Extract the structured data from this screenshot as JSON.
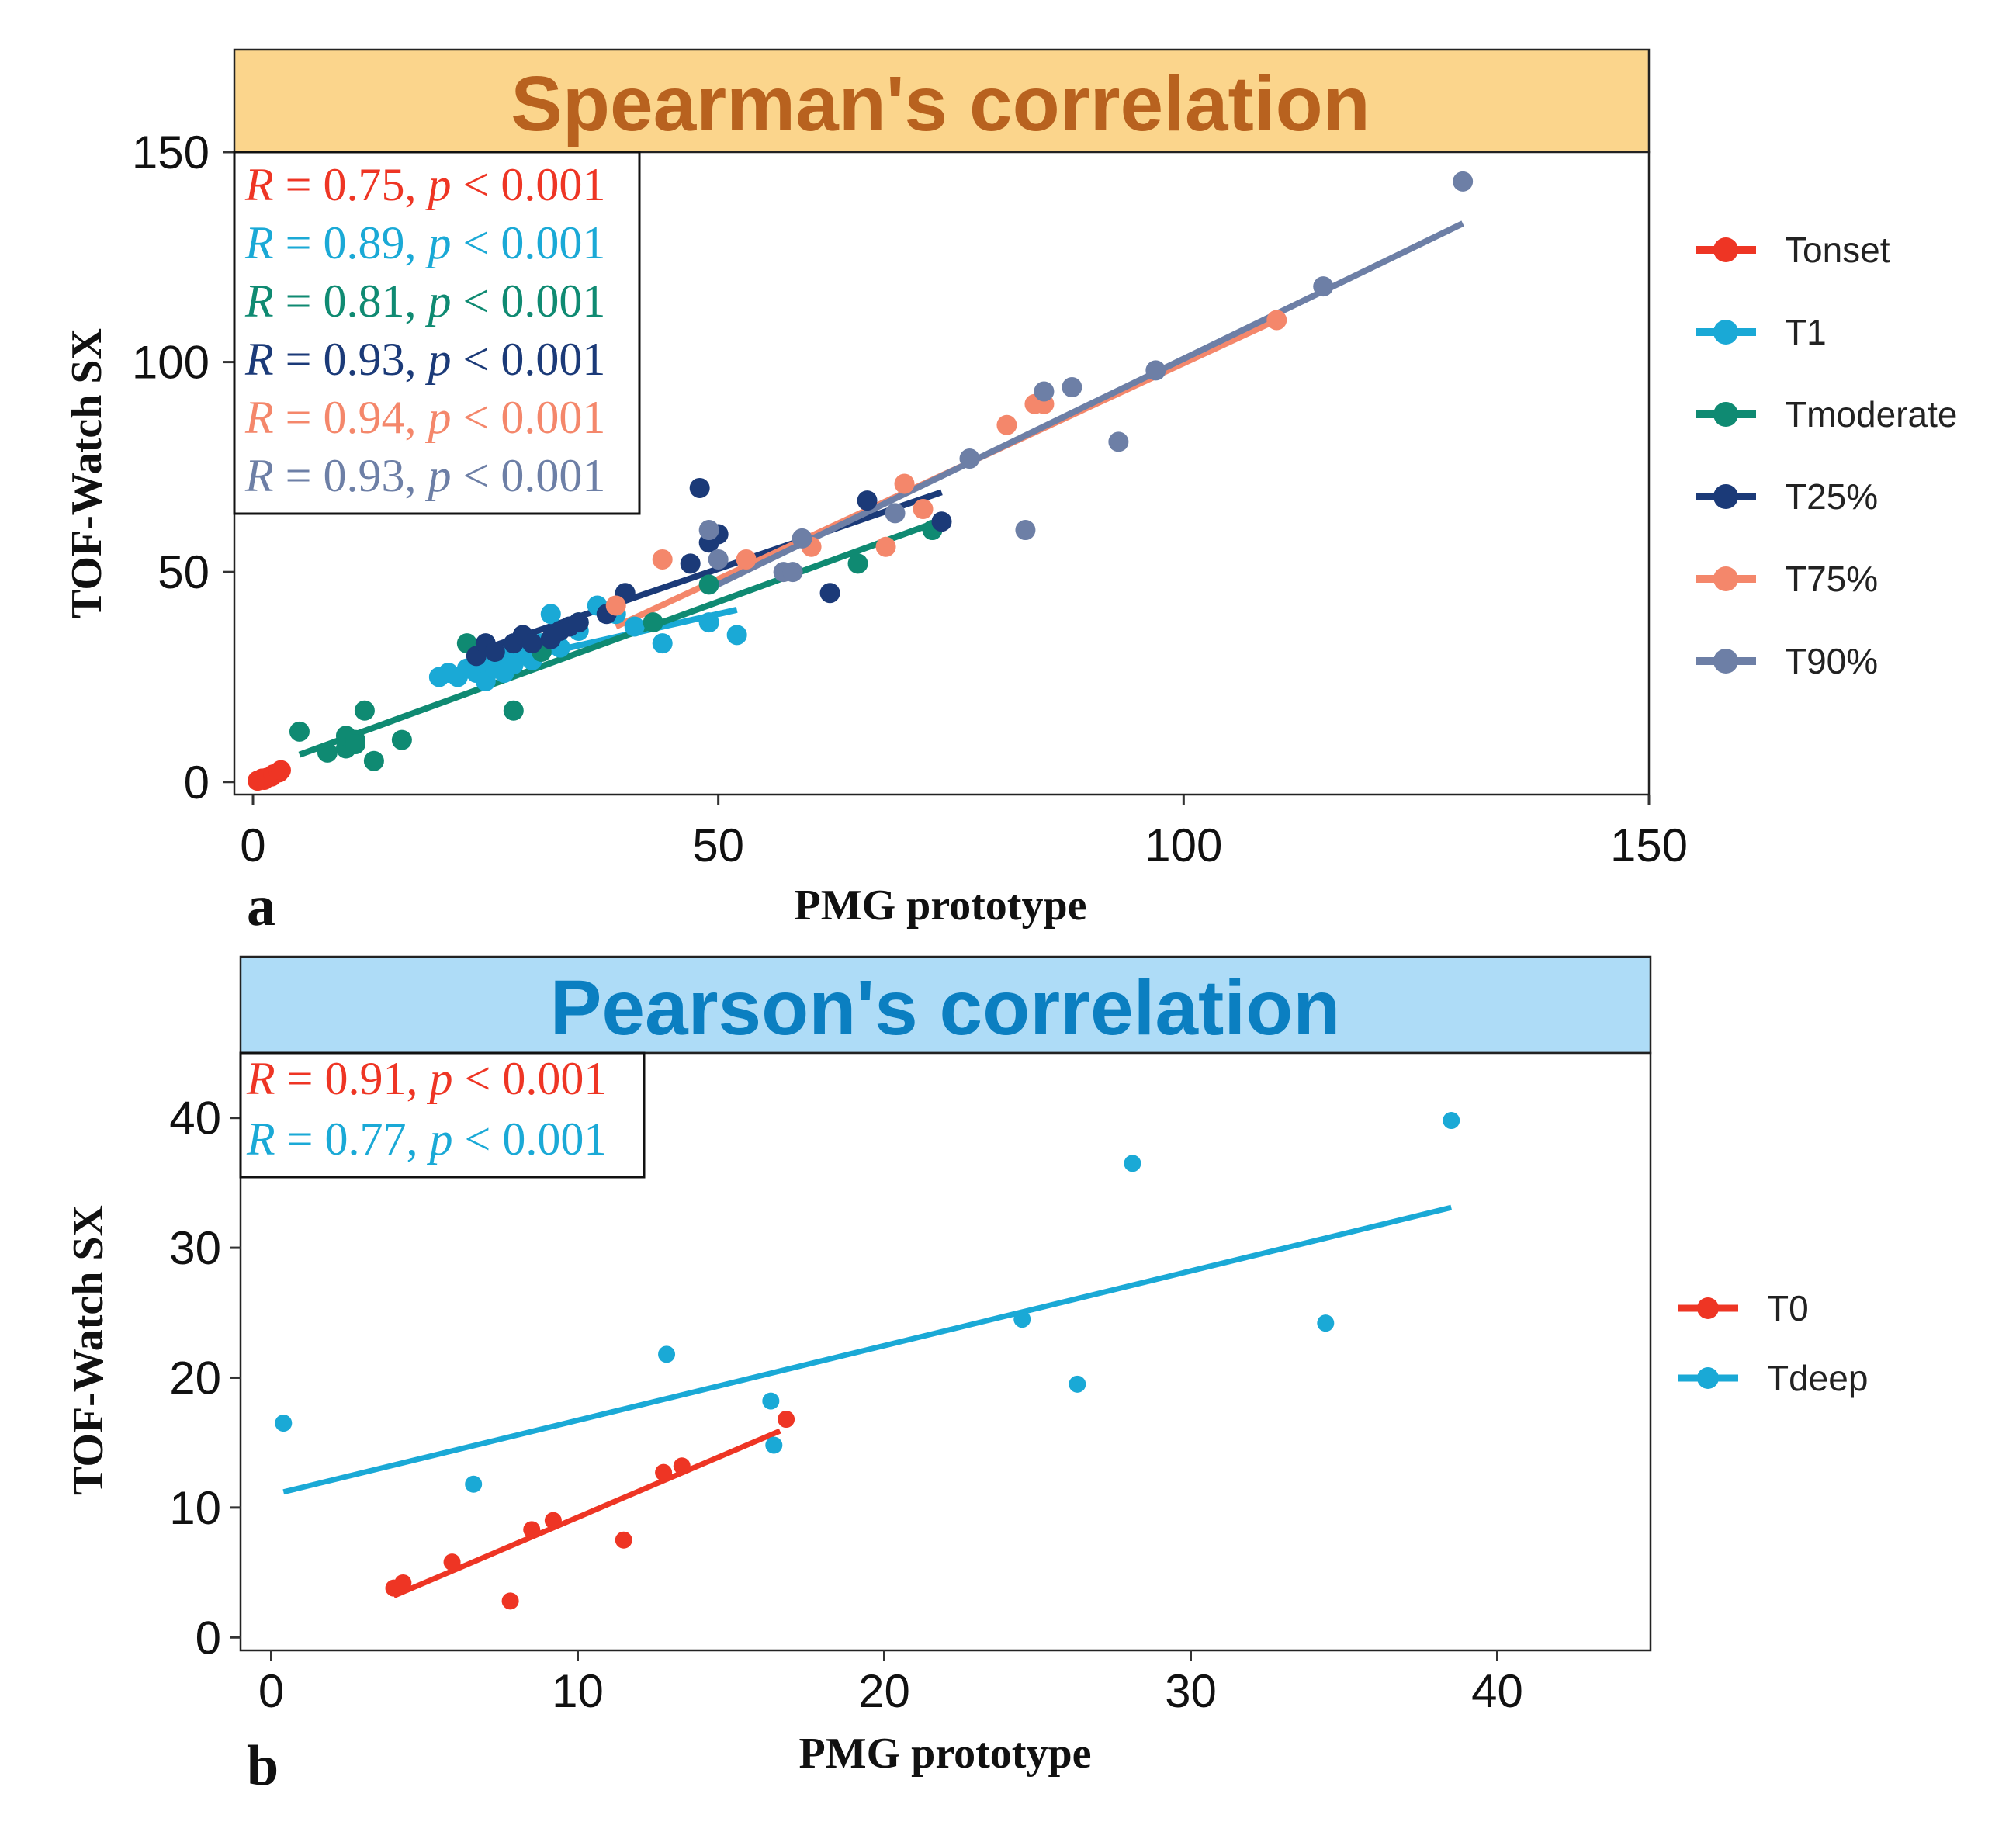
{
  "chart_data": [
    {
      "id": "a",
      "type": "scatter",
      "panel_label": "a",
      "title": "Spearman's correlation",
      "title_color": "#b8621f",
      "strip_color": "#fbd58c",
      "xlabel": "PMG prototype",
      "ylabel": "TOF-Watch SX",
      "xlim": [
        -2,
        150
      ],
      "ylim": [
        -3,
        150
      ],
      "xticks": [
        0,
        50,
        100,
        150
      ],
      "yticks": [
        0,
        50,
        100,
        150
      ],
      "grid": false,
      "legend_position": "right",
      "stats": [
        {
          "series": "Tonset",
          "text": "R = 0.75, p < 0.001"
        },
        {
          "series": "T1",
          "text": "R = 0.89, p < 0.001"
        },
        {
          "series": "Tmoderate",
          "text": "R = 0.81, p < 0.001"
        },
        {
          "series": "T25%",
          "text": "R = 0.93, p < 0.001"
        },
        {
          "series": "T75%",
          "text": "R = 0.94, p < 0.001"
        },
        {
          "series": "T90%",
          "text": "R = 0.93, p < 0.001"
        }
      ],
      "series": [
        {
          "name": "Tonset",
          "color": "#ee3524",
          "points": [
            [
              0.5,
              0.3
            ],
            [
              1.0,
              0.8
            ],
            [
              1.2,
              0.5
            ],
            [
              1.5,
              1.0
            ],
            [
              2.0,
              1.3
            ],
            [
              2.2,
              1.8
            ],
            [
              2.8,
              2.3
            ],
            [
              3.0,
              2.8
            ]
          ],
          "fit": [
            [
              0,
              0.2
            ],
            [
              3.2,
              2.4
            ]
          ]
        },
        {
          "name": "T1",
          "color": "#1aa9d6",
          "points": [
            [
              20,
              25
            ],
            [
              21,
              26
            ],
            [
              22,
              25
            ],
            [
              23,
              27
            ],
            [
              24,
              26
            ],
            [
              25,
              28
            ],
            [
              25,
              24
            ],
            [
              26,
              29
            ],
            [
              26,
              27
            ],
            [
              27,
              30
            ],
            [
              27,
              26
            ],
            [
              28,
              28
            ],
            [
              29,
              31
            ],
            [
              30,
              29
            ],
            [
              31,
              33
            ],
            [
              32,
              40
            ],
            [
              33,
              32
            ],
            [
              35,
              36
            ],
            [
              37,
              42
            ],
            [
              39,
              40
            ],
            [
              41,
              37
            ],
            [
              44,
              33
            ],
            [
              49,
              38
            ],
            [
              52,
              35
            ]
          ],
          "fit": [
            [
              20,
              25
            ],
            [
              52,
              41
            ]
          ]
        },
        {
          "name": "Tmoderate",
          "color": "#0f8a72",
          "points": [
            [
              5,
              12
            ],
            [
              8,
              7
            ],
            [
              10,
              8
            ],
            [
              10,
              11
            ],
            [
              11,
              10
            ],
            [
              11,
              9
            ],
            [
              12,
              17
            ],
            [
              13,
              5
            ],
            [
              16,
              10
            ],
            [
              23,
              33
            ],
            [
              28,
              17
            ],
            [
              31,
              31
            ],
            [
              35,
              38
            ],
            [
              43,
              38
            ],
            [
              49,
              47
            ],
            [
              65,
              52
            ],
            [
              73,
              60
            ]
          ],
          "fit": [
            [
              5,
              6.5
            ],
            [
              73,
              61.5
            ]
          ]
        },
        {
          "name": "T25%",
          "color": "#1b3a78",
          "points": [
            [
              24,
              30
            ],
            [
              25,
              33
            ],
            [
              26,
              31
            ],
            [
              28,
              33
            ],
            [
              29,
              35
            ],
            [
              30,
              33
            ],
            [
              32,
              34
            ],
            [
              33,
              36
            ],
            [
              34,
              37
            ],
            [
              35,
              38
            ],
            [
              38,
              40
            ],
            [
              40,
              45
            ],
            [
              47,
              52
            ],
            [
              48,
              70
            ],
            [
              49,
              57
            ],
            [
              50,
              59
            ],
            [
              62,
              45
            ],
            [
              66,
              67
            ],
            [
              74,
              62
            ]
          ],
          "fit": [
            [
              24,
              31
            ],
            [
              74,
              69
            ]
          ]
        },
        {
          "name": "T75%",
          "color": "#f4876b",
          "points": [
            [
              39,
              42
            ],
            [
              44,
              53
            ],
            [
              53,
              53
            ],
            [
              60,
              56
            ],
            [
              68,
              56
            ],
            [
              70,
              71
            ],
            [
              72,
              65
            ],
            [
              81,
              85
            ],
            [
              84,
              90
            ],
            [
              85,
              90
            ],
            [
              110,
              110
            ]
          ],
          "fit": [
            [
              39,
              37
            ],
            [
              110,
              110
            ]
          ]
        },
        {
          "name": "T90%",
          "color": "#6d7fa6",
          "points": [
            [
              49,
              60
            ],
            [
              50,
              53
            ],
            [
              57,
              50
            ],
            [
              58,
              50
            ],
            [
              59,
              58
            ],
            [
              69,
              64
            ],
            [
              77,
              77
            ],
            [
              83,
              60
            ],
            [
              85,
              93
            ],
            [
              88,
              94
            ],
            [
              93,
              81
            ],
            [
              97,
              98
            ],
            [
              115,
              118
            ],
            [
              130,
              143
            ]
          ],
          "fit": [
            [
              49,
              46
            ],
            [
              130,
              133
            ]
          ]
        }
      ]
    },
    {
      "id": "b",
      "type": "scatter",
      "panel_label": "b",
      "title": "Pearson's correlation",
      "title_color": "#0b7fc1",
      "strip_color": "#aedcf7",
      "xlabel": "PMG prototype",
      "ylabel": "TOF-Watch SX",
      "xlim": [
        -1,
        45
      ],
      "ylim": [
        -1,
        45
      ],
      "xticks": [
        0,
        10,
        20,
        30,
        40
      ],
      "yticks": [
        0,
        10,
        20,
        30,
        40
      ],
      "grid": false,
      "legend_position": "right",
      "stats": [
        {
          "series": "T0",
          "text": "R = 0.91, p < 0.001"
        },
        {
          "series": "Tdeep",
          "text": "R = 0.77, p < 0.001"
        }
      ],
      "series": [
        {
          "name": "T0",
          "color": "#ee3524",
          "points": [
            [
              4.0,
              3.8
            ],
            [
              4.3,
              4.2
            ],
            [
              5.9,
              5.8
            ],
            [
              7.8,
              2.8
            ],
            [
              8.5,
              8.3
            ],
            [
              9.2,
              9.0
            ],
            [
              11.5,
              7.5
            ],
            [
              12.8,
              12.7
            ],
            [
              13.4,
              13.2
            ],
            [
              16.8,
              16.8
            ]
          ],
          "fit": [
            [
              4.0,
              3.2
            ],
            [
              16.6,
              15.9
            ]
          ]
        },
        {
          "name": "Tdeep",
          "color": "#1aa9d6",
          "points": [
            [
              0.4,
              16.5
            ],
            [
              6.6,
              11.8
            ],
            [
              12.9,
              21.8
            ],
            [
              16.3,
              18.2
            ],
            [
              16.4,
              14.8
            ],
            [
              24.5,
              24.5
            ],
            [
              26.3,
              19.5
            ],
            [
              28.1,
              36.5
            ],
            [
              34.4,
              24.2
            ],
            [
              38.5,
              39.8
            ]
          ],
          "fit": [
            [
              0.4,
              11.2
            ],
            [
              38.5,
              33.1
            ]
          ]
        }
      ]
    }
  ]
}
